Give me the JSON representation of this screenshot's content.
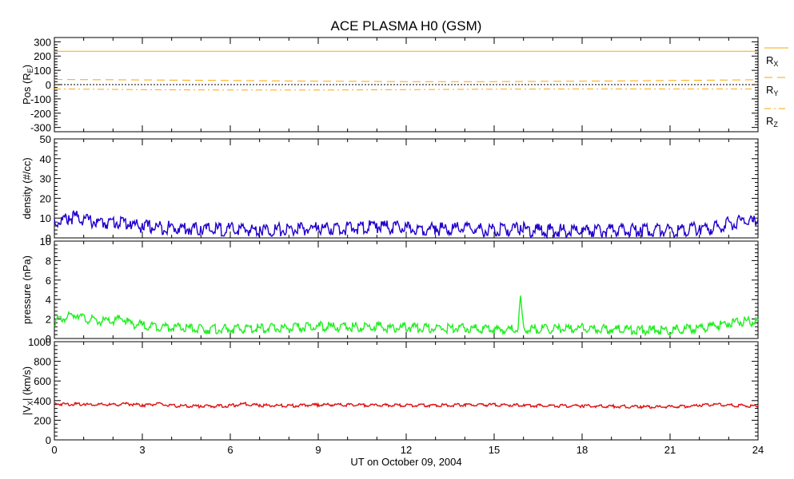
{
  "chart_data": [
    {
      "type": "line",
      "panel": "position",
      "title": "ACE PLASMA H0 (GSM)",
      "ylabel_main": "Pos (R",
      "ylabel_sub": "E",
      "ylabel_end": ")",
      "ylim": [
        -330,
        330
      ],
      "yticks": [
        300,
        200,
        100,
        0,
        -100,
        -200,
        -300
      ],
      "ytick_labels": [
        "300",
        "200",
        "100",
        "0",
        "-100",
        "-200",
        "-300"
      ],
      "zero_line": true,
      "x": [
        0,
        3,
        6,
        9,
        12,
        15,
        18,
        21,
        24
      ],
      "series": [
        {
          "name": "R",
          "name_sub": "X",
          "style": "solid",
          "color": "#ffa500",
          "values": [
            233,
            233,
            233,
            233,
            233,
            233,
            233,
            233,
            233
          ]
        },
        {
          "name": "R",
          "name_sub": "Y",
          "style": "dashed",
          "color": "#ffa500",
          "values": [
            36,
            33,
            29,
            24,
            21,
            21,
            24,
            29,
            34
          ]
        },
        {
          "name": "R",
          "name_sub": "Z",
          "style": "dashdot",
          "color": "#ffa500",
          "values": [
            -30,
            -35,
            -38,
            -38,
            -35,
            -32,
            -30,
            -30,
            -30
          ]
        }
      ]
    },
    {
      "type": "line",
      "panel": "density",
      "ylabel": "density (#/cc)",
      "ylim": [
        0,
        50
      ],
      "yticks": [
        50,
        40,
        30,
        20,
        10,
        0
      ],
      "ytick_labels": [
        "50",
        "40",
        "30",
        "20",
        "10",
        "0"
      ],
      "series": [
        {
          "color": "#2200cc",
          "x": [
            0,
            0.5,
            0.7,
            1.0,
            1.5,
            2.0,
            2.3,
            2.6,
            3.0,
            3.5,
            4.0,
            5.0,
            6.0,
            7.0,
            8.0,
            9.0,
            10.0,
            11.0,
            12.0,
            13.0,
            14.0,
            15.0,
            15.9,
            16.2,
            17.0,
            18.0,
            19.0,
            20.0,
            21.0,
            22.0,
            22.5,
            23.0,
            23.5,
            24.0
          ],
          "values": [
            9.5,
            11.5,
            12.5,
            11,
            9.5,
            9.5,
            10,
            8.5,
            7.5,
            7,
            7,
            6,
            6,
            5.8,
            5.8,
            6.5,
            6.5,
            7.5,
            6.5,
            6.2,
            6.5,
            5.5,
            6.5,
            5.5,
            5.5,
            5.2,
            5.5,
            5.5,
            5.5,
            6.5,
            6.5,
            9,
            10,
            9.5
          ]
        }
      ]
    },
    {
      "type": "line",
      "panel": "pressure",
      "ylabel": "pressure (nPa)",
      "ylim": [
        0,
        10
      ],
      "yticks": [
        10,
        8,
        6,
        4,
        2,
        0
      ],
      "ytick_labels": [
        "10",
        "8",
        "6",
        "4",
        "2",
        "0"
      ],
      "series": [
        {
          "color": "#22ee22",
          "x": [
            0,
            0.5,
            0.8,
            1.0,
            1.5,
            2.0,
            2.3,
            2.6,
            3.0,
            3.5,
            4.0,
            5.0,
            6.0,
            7.0,
            8.0,
            9.0,
            10.0,
            11.0,
            11.5,
            12.0,
            13.0,
            14.0,
            15.0,
            15.8,
            15.9,
            16.0,
            17.0,
            18.0,
            19.0,
            20.0,
            21.0,
            22.0,
            23.0,
            23.5,
            24.0
          ],
          "values": [
            2.0,
            2.5,
            2.8,
            2.3,
            2.0,
            2.0,
            2.3,
            1.8,
            1.6,
            1.5,
            1.4,
            1.2,
            1.2,
            1.3,
            1.3,
            1.5,
            1.4,
            1.5,
            1.3,
            1.4,
            1.3,
            1.3,
            1.2,
            1.2,
            4.4,
            1.2,
            1.2,
            1.3,
            1.2,
            1.1,
            1.1,
            1.3,
            1.8,
            2.0,
            2.0
          ]
        }
      ]
    },
    {
      "type": "line",
      "panel": "velocity",
      "ylabel_pre": "|V",
      "ylabel_sub": "X",
      "ylabel_end": "| (km/s)",
      "ylim": [
        0,
        1000
      ],
      "yticks": [
        1000,
        800,
        600,
        400,
        200,
        0
      ],
      "ytick_labels": [
        "1000",
        "800",
        "600",
        "400",
        "200",
        "0"
      ],
      "series": [
        {
          "color": "#dd1111",
          "x": [
            0,
            1,
            2,
            2.5,
            3,
            3.5,
            4,
            5,
            6,
            6.5,
            7,
            8,
            9,
            10,
            11,
            12,
            13,
            14,
            15,
            16,
            17,
            18,
            19,
            20,
            21,
            22,
            22.5,
            23,
            24
          ],
          "values": [
            375,
            370,
            365,
            375,
            360,
            375,
            355,
            350,
            355,
            375,
            360,
            355,
            365,
            365,
            360,
            360,
            360,
            365,
            365,
            360,
            355,
            355,
            350,
            345,
            345,
            355,
            370,
            360,
            355
          ]
        }
      ]
    }
  ],
  "x_axis": {
    "label": "UT on October 09, 2004",
    "xlim": [
      0,
      24
    ],
    "ticks": [
      0,
      3,
      6,
      9,
      12,
      15,
      18,
      21,
      24
    ],
    "tick_labels": [
      "0",
      "3",
      "6",
      "9",
      "12",
      "15",
      "18",
      "21",
      "24"
    ]
  }
}
